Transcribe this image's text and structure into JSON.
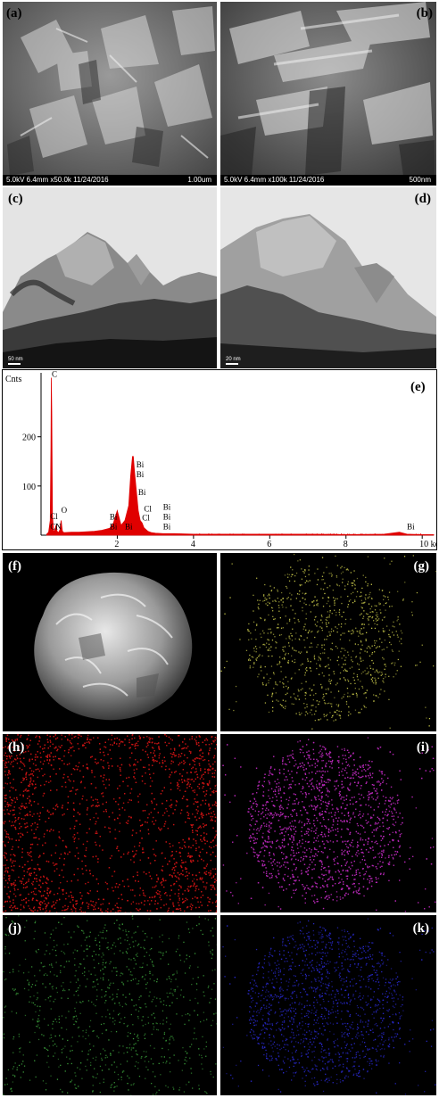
{
  "panels": {
    "a": {
      "label": "(a)",
      "info": "5.0kV 6.4mm x50.0k 11/24/2016",
      "scale": "1.00um"
    },
    "b": {
      "label": "(b)",
      "info": "5.0kV 6.4mm x100k 11/24/2016",
      "scale": "500nm"
    },
    "c": {
      "label": "(c)",
      "scale": "50 nm"
    },
    "d": {
      "label": "(d)",
      "scale": "20 nm"
    },
    "e": {
      "label": "(e)"
    },
    "f": {
      "label": "(f)"
    },
    "g": {
      "label": "(g)"
    },
    "h": {
      "label": "(h)"
    },
    "i": {
      "label": "(i)"
    },
    "j": {
      "label": "(j)"
    },
    "k": {
      "label": "(k)"
    }
  },
  "map_colors": {
    "g": "#c8c84a",
    "h": "#c81414",
    "i": "#b428b4",
    "j": "#3ca03c",
    "k": "#2828c8"
  },
  "chart_data": {
    "type": "line",
    "ylabel": "Cnts",
    "xlabel": "",
    "xlim": [
      0,
      10.3
    ],
    "ylim": [
      0,
      330
    ],
    "y_ticks": [
      100,
      200
    ],
    "x_ticks": [
      {
        "value": 2,
        "label": "2"
      },
      {
        "value": 4,
        "label": "4"
      },
      {
        "value": 6,
        "label": "6"
      },
      {
        "value": 8,
        "label": "8"
      },
      {
        "value": 10,
        "label": "10 keV"
      }
    ],
    "color": "#e00000",
    "series": [
      {
        "x": [
          0.15,
          0.2,
          0.24,
          0.26,
          0.27,
          0.28,
          0.3,
          0.33,
          0.37,
          0.39,
          0.4,
          0.42,
          0.46,
          0.5,
          0.52,
          0.53,
          0.54,
          0.56,
          0.6,
          0.8,
          1.0,
          1.2,
          1.4,
          1.6,
          1.8,
          1.9,
          2.0,
          2.05,
          2.1,
          2.2,
          2.3,
          2.35,
          2.4,
          2.42,
          2.45,
          2.5,
          2.55,
          2.6,
          2.65,
          2.7,
          2.8,
          2.9,
          3.0,
          3.2,
          3.5,
          4.0,
          5.0,
          6.0,
          7.0,
          8.0,
          9.0,
          9.4,
          9.6,
          10.0,
          10.3
        ],
        "y": [
          2,
          6,
          30,
          180,
          320,
          250,
          40,
          6,
          12,
          20,
          14,
          8,
          5,
          12,
          26,
          30,
          20,
          8,
          5,
          6,
          6,
          7,
          8,
          10,
          14,
          25,
          50,
          35,
          20,
          30,
          60,
          120,
          160,
          160,
          130,
          90,
          50,
          30,
          25,
          15,
          8,
          5,
          4,
          3,
          3,
          2,
          2,
          2,
          2,
          1,
          2,
          6,
          2,
          1,
          1
        ]
      }
    ],
    "peak_labels": [
      {
        "x": 0.28,
        "y": 322,
        "text": "C"
      },
      {
        "x": 0.24,
        "y": 33,
        "text": "Cl"
      },
      {
        "x": 0.24,
        "y": 12,
        "text": "Cl"
      },
      {
        "x": 0.38,
        "y": 12,
        "text": "N"
      },
      {
        "x": 0.53,
        "y": 45,
        "text": "O"
      },
      {
        "x": 1.8,
        "y": 32,
        "text": "Bi"
      },
      {
        "x": 1.8,
        "y": 12,
        "text": "Bi"
      },
      {
        "x": 2.2,
        "y": 12,
        "text": "Bi"
      },
      {
        "x": 2.5,
        "y": 138,
        "text": "Bi"
      },
      {
        "x": 2.5,
        "y": 118,
        "text": "Bi"
      },
      {
        "x": 2.55,
        "y": 82,
        "text": "Bi"
      },
      {
        "x": 2.7,
        "y": 48,
        "text": "Cl"
      },
      {
        "x": 2.65,
        "y": 30,
        "text": "Cl"
      },
      {
        "x": 3.2,
        "y": 52,
        "text": "Bi"
      },
      {
        "x": 3.2,
        "y": 32,
        "text": "Bi"
      },
      {
        "x": 3.2,
        "y": 12,
        "text": "Bi"
      },
      {
        "x": 9.6,
        "y": 12,
        "text": "Bi"
      }
    ]
  }
}
